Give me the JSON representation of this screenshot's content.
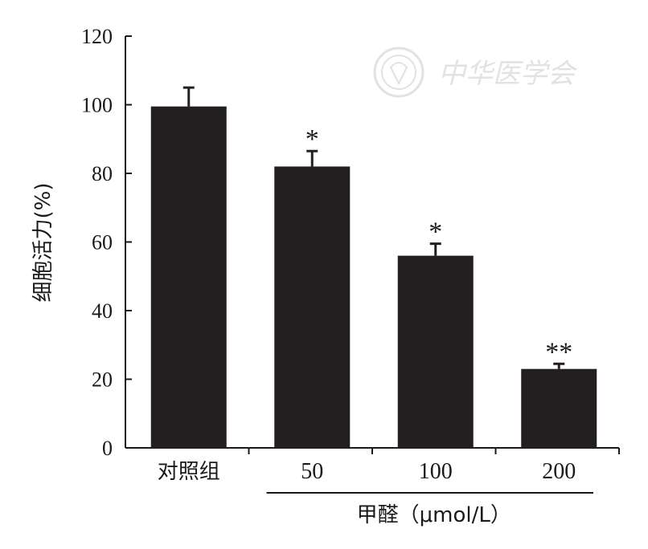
{
  "chart_data": {
    "type": "bar",
    "categories": [
      "对照组",
      "50",
      "100",
      "200"
    ],
    "values": [
      99.5,
      82,
      56,
      23
    ],
    "errors": [
      5.5,
      4.5,
      3.5,
      1.5
    ],
    "significance": [
      "",
      "*",
      "*",
      "**"
    ],
    "ylabel": "细胞活力(%)",
    "xgroup_label": "甲醛（μmol/L）",
    "ylim": [
      0,
      120
    ],
    "yticks": [
      0,
      20,
      40,
      60,
      80,
      100,
      120
    ],
    "grid": false,
    "bar_color": "#231f20",
    "watermark_text": "中华医学会"
  }
}
